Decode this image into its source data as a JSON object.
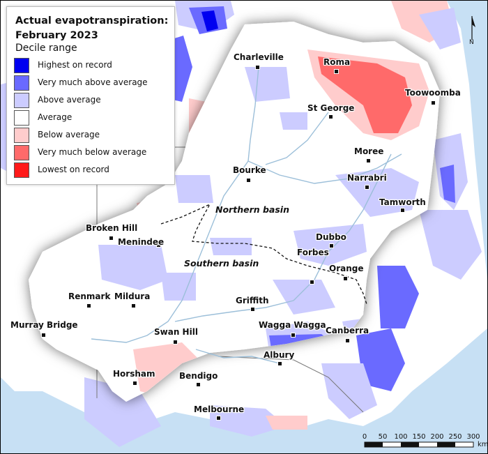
{
  "legend": {
    "title": "Actual evapotranspiration: February 2023",
    "subtitle": "Decile range",
    "items": [
      {
        "label": "Highest on record",
        "color": "#0000f0"
      },
      {
        "label": "Very much above average",
        "color": "#6a6aff"
      },
      {
        "label": "Above average",
        "color": "#ccccff"
      },
      {
        "label": "Average",
        "color": "#ffffff"
      },
      {
        "label": "Below average",
        "color": "#ffcccc"
      },
      {
        "label": "Very much below average",
        "color": "#ff6a6a"
      },
      {
        "label": "Lowest on record",
        "color": "#ff1a1a"
      }
    ]
  },
  "towns": [
    {
      "name": "Charleville"
    },
    {
      "name": "Roma"
    },
    {
      "name": "Toowoomba"
    },
    {
      "name": "St George"
    },
    {
      "name": "Moree"
    },
    {
      "name": "Bourke"
    },
    {
      "name": "Narrabri"
    },
    {
      "name": "Tamworth"
    },
    {
      "name": "Broken Hill"
    },
    {
      "name": "Menindee"
    },
    {
      "name": "Dubbo"
    },
    {
      "name": "Forbes"
    },
    {
      "name": "Orange"
    },
    {
      "name": "Renmark"
    },
    {
      "name": "Mildura"
    },
    {
      "name": "Griffith"
    },
    {
      "name": "Murray Bridge"
    },
    {
      "name": "Swan Hill"
    },
    {
      "name": "Wagga Wagga"
    },
    {
      "name": "Canberra"
    },
    {
      "name": "Albury"
    },
    {
      "name": "Horsham"
    },
    {
      "name": "Bendigo"
    },
    {
      "name": "Melbourne"
    }
  ],
  "basins": {
    "northern": "Northern basin",
    "southern": "Southern basin"
  },
  "scale_bar": {
    "ticks": [
      "0",
      "50",
      "100",
      "150",
      "200",
      "250",
      "300"
    ],
    "unit": "km"
  },
  "north_arrow": {
    "label": "N"
  },
  "colors": {
    "ocean": "#c7e0f4",
    "land_outside": "#ffffff",
    "river": "#9cbfd9"
  }
}
